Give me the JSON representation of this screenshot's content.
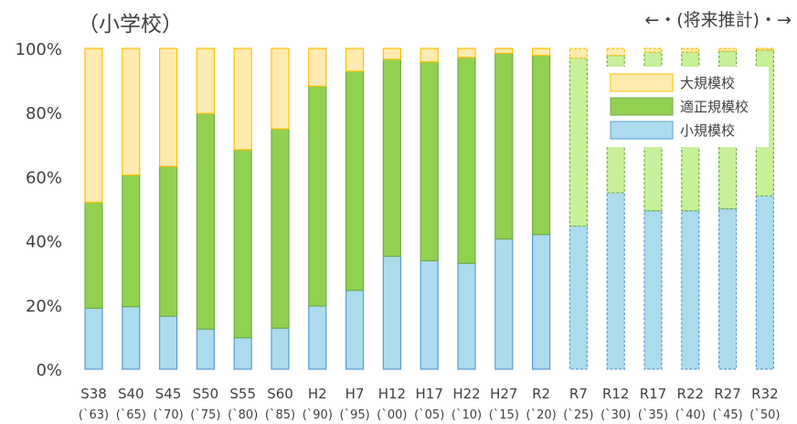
{
  "chart_data": {
    "type": "bar",
    "stacked": true,
    "title": "（小学校）",
    "annotation": "←・(将来推計)・→",
    "ylim": [
      0,
      100
    ],
    "yticks": [
      "0%",
      "20%",
      "40%",
      "60%",
      "80%",
      "100%"
    ],
    "grid": false,
    "legend_position": "top-right",
    "categories": [
      "S38",
      "S40",
      "S45",
      "S50",
      "S55",
      "S60",
      "H2",
      "H7",
      "H12",
      "H17",
      "H22",
      "H27",
      "R2",
      "R7",
      "R12",
      "R17",
      "R22",
      "R27",
      "R32"
    ],
    "categories_sub": [
      "(`63)",
      "(`65)",
      "(`70)",
      "(`75)",
      "(`80)",
      "(`85)",
      "(`90)",
      "(`95)",
      "(`00)",
      "(`05)",
      "(`10)",
      "(`15)",
      "(`20)",
      "(`25)",
      "(`30)",
      "(`35)",
      "(`40)",
      "(`45)",
      "(`50)"
    ],
    "projected_from_index": 13,
    "series": [
      {
        "name": "小規模校",
        "color": "#ADDBEE",
        "border": "#5B9BD5",
        "values": [
          19,
          19.5,
          16.5,
          12.5,
          9.8,
          12.8,
          19.7,
          24.6,
          35.2,
          33.8,
          33,
          40.6,
          42,
          44.6,
          55,
          49.4,
          49.4,
          50,
          54
        ]
      },
      {
        "name": "適正規模校",
        "color": "#92D050",
        "color_projected": "#C8F09A",
        "border": "#70AD47",
        "values": [
          33,
          41,
          46.7,
          67.2,
          58.6,
          62.1,
          68.5,
          68.3,
          61.4,
          62,
          64.2,
          57.9,
          55.8,
          52.4,
          42.8,
          49.4,
          49.4,
          49.1,
          45.5
        ]
      },
      {
        "name": "大規模校",
        "color": "#FFEAAF",
        "border": "#FFC000",
        "values": [
          48,
          39.5,
          36.8,
          20.3,
          31.6,
          25.1,
          11.8,
          7.1,
          3.4,
          4.2,
          2.8,
          1.5,
          2.2,
          3,
          2.2,
          1.2,
          1.2,
          0.9,
          0.5
        ]
      }
    ]
  }
}
